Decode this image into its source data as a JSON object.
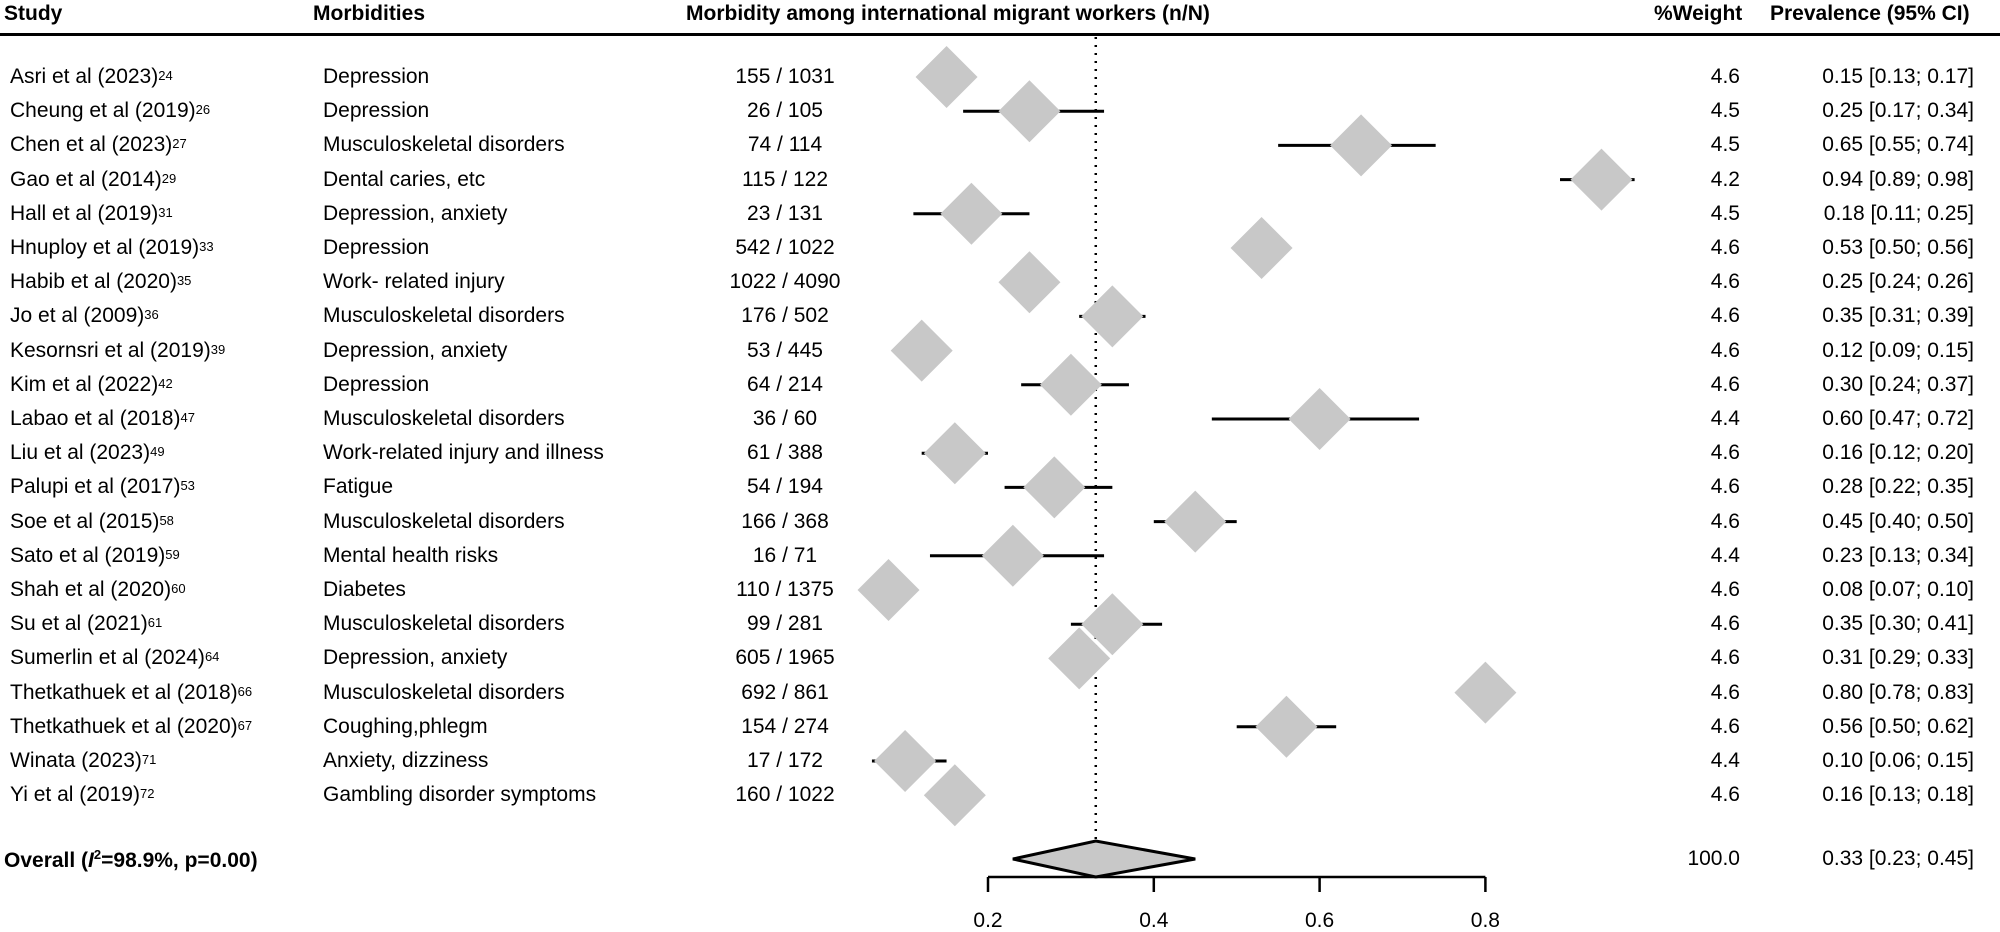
{
  "chart_data": {
    "type": "forest",
    "title": "",
    "columns": {
      "study": "Study",
      "morbidities": "Morbidities",
      "nN": "Morbidity among international migrant workers (n/N)",
      "weight": "%Weight",
      "prevalence": "Prevalence (95% CI)"
    },
    "xlim": [
      0.2,
      0.8
    ],
    "xticks": [
      0.2,
      0.4,
      0.6,
      0.8
    ],
    "xtick_labels": [
      "0.2",
      "0.4",
      "0.6",
      "0.8"
    ],
    "reference_line": 0.33,
    "studies": [
      {
        "study": "Asri et al (2023)",
        "ref": "24",
        "morbidity": "Depression",
        "nN": "155 / 1031",
        "weight": "4.6",
        "est": 0.15,
        "lo": 0.13,
        "hi": 0.17,
        "prevalence": "0.15 [0.13; 0.17]"
      },
      {
        "study": "Cheung et al (2019)",
        "ref": "26",
        "morbidity": "Depression",
        "nN": "26 / 105",
        "weight": "4.5",
        "est": 0.25,
        "lo": 0.17,
        "hi": 0.34,
        "prevalence": "0.25 [0.17; 0.34]"
      },
      {
        "study": "Chen et al (2023)",
        "ref": "27",
        "morbidity": "Musculoskeletal disorders",
        "nN": "74 / 114",
        "weight": "4.5",
        "est": 0.65,
        "lo": 0.55,
        "hi": 0.74,
        "prevalence": "0.65 [0.55; 0.74]"
      },
      {
        "study": "Gao et al (2014)",
        "ref": "29",
        "morbidity": "Dental caries, etc",
        "nN": "115 / 122",
        "weight": "4.2",
        "est": 0.94,
        "lo": 0.89,
        "hi": 0.98,
        "prevalence": "0.94 [0.89; 0.98]"
      },
      {
        "study": "Hall et al (2019)",
        "ref": "31",
        "morbidity": "Depression, anxiety",
        "nN": "23 / 131",
        "weight": "4.5",
        "est": 0.18,
        "lo": 0.11,
        "hi": 0.25,
        "prevalence": "0.18 [0.11; 0.25]"
      },
      {
        "study": "Hnuploy et al (2019)",
        "ref": "33",
        "morbidity": "Depression",
        "nN": "542 / 1022",
        "weight": "4.6",
        "est": 0.53,
        "lo": 0.5,
        "hi": 0.56,
        "prevalence": "0.53 [0.50; 0.56]"
      },
      {
        "study": "Habib et al (2020)",
        "ref": "35",
        "morbidity": "Work- related injury",
        "nN": "1022 / 4090",
        "weight": "4.6",
        "est": 0.25,
        "lo": 0.24,
        "hi": 0.26,
        "prevalence": "0.25 [0.24; 0.26]"
      },
      {
        "study": "Jo et al (2009)",
        "ref": "36",
        "morbidity": "Musculoskeletal disorders",
        "nN": "176 / 502",
        "weight": "4.6",
        "est": 0.35,
        "lo": 0.31,
        "hi": 0.39,
        "prevalence": "0.35 [0.31; 0.39]"
      },
      {
        "study": "Kesornsri et al (2019)",
        "ref": "39",
        "morbidity": "Depression, anxiety",
        "nN": "53 / 445",
        "weight": "4.6",
        "est": 0.12,
        "lo": 0.09,
        "hi": 0.15,
        "prevalence": "0.12 [0.09; 0.15]"
      },
      {
        "study": "Kim et al (2022)",
        "ref": "42",
        "morbidity": "Depression",
        "nN": "64 / 214",
        "weight": "4.6",
        "est": 0.3,
        "lo": 0.24,
        "hi": 0.37,
        "prevalence": "0.30 [0.24; 0.37]"
      },
      {
        "study": "Labao et al (2018)",
        "ref": "47",
        "morbidity": "Musculoskeletal disorders",
        "nN": "36 / 60",
        "weight": "4.4",
        "est": 0.6,
        "lo": 0.47,
        "hi": 0.72,
        "prevalence": "0.60 [0.47; 0.72]"
      },
      {
        "study": "Liu et al (2023)",
        "ref": "49",
        "morbidity": "Work-related injury and illness",
        "nN": "61 / 388",
        "weight": "4.6",
        "est": 0.16,
        "lo": 0.12,
        "hi": 0.2,
        "prevalence": "0.16 [0.12; 0.20]"
      },
      {
        "study": "Palupi et al (2017)",
        "ref": "53",
        "morbidity": "Fatigue",
        "nN": "54 / 194",
        "weight": "4.6",
        "est": 0.28,
        "lo": 0.22,
        "hi": 0.35,
        "prevalence": "0.28 [0.22; 0.35]"
      },
      {
        "study": "Soe et al (2015)",
        "ref": "58",
        "morbidity": "Musculoskeletal disorders",
        "nN": "166 / 368",
        "weight": "4.6",
        "est": 0.45,
        "lo": 0.4,
        "hi": 0.5,
        "prevalence": "0.45 [0.40; 0.50]"
      },
      {
        "study": "Sato et al (2019)",
        "ref": "59",
        "morbidity": "Mental health risks",
        "nN": "16 / 71",
        "weight": "4.4",
        "est": 0.23,
        "lo": 0.13,
        "hi": 0.34,
        "prevalence": "0.23 [0.13; 0.34]"
      },
      {
        "study": "Shah et al (2020)",
        "ref": "60",
        "morbidity": "Diabetes",
        "nN": "110 / 1375",
        "weight": "4.6",
        "est": 0.08,
        "lo": 0.07,
        "hi": 0.1,
        "prevalence": "0.08 [0.07; 0.10]"
      },
      {
        "study": "Su et al (2021)",
        "ref": "61",
        "morbidity": "Musculoskeletal disorders",
        "nN": "99 / 281",
        "weight": "4.6",
        "est": 0.35,
        "lo": 0.3,
        "hi": 0.41,
        "prevalence": "0.35 [0.30; 0.41]"
      },
      {
        "study": "Sumerlin et al (2024)",
        "ref": "64",
        "morbidity": "Depression, anxiety",
        "nN": "605 / 1965",
        "weight": "4.6",
        "est": 0.31,
        "lo": 0.29,
        "hi": 0.33,
        "prevalence": "0.31 [0.29; 0.33]"
      },
      {
        "study": "Thetkathuek et al (2018)",
        "ref": "66",
        "morbidity": "Musculoskeletal disorders",
        "nN": "692 / 861",
        "weight": "4.6",
        "est": 0.8,
        "lo": 0.78,
        "hi": 0.83,
        "prevalence": "0.80 [0.78; 0.83]"
      },
      {
        "study": "Thetkathuek et al (2020)",
        "ref": "67",
        "morbidity": "Coughing,phlegm",
        "nN": "154 / 274",
        "weight": "4.6",
        "est": 0.56,
        "lo": 0.5,
        "hi": 0.62,
        "prevalence": "0.56 [0.50; 0.62]"
      },
      {
        "study": "Winata (2023)",
        "ref": "71",
        "morbidity": "Anxiety, dizziness",
        "nN": "17 / 172",
        "weight": "4.4",
        "est": 0.1,
        "lo": 0.06,
        "hi": 0.15,
        "prevalence": "0.10 [0.06; 0.15]"
      },
      {
        "study": "Yi et al (2019)",
        "ref": "72",
        "morbidity": "Gambling disorder symptoms",
        "nN": "160 / 1022",
        "weight": "4.6",
        "est": 0.16,
        "lo": 0.13,
        "hi": 0.18,
        "prevalence": "0.16 [0.13; 0.18]"
      }
    ],
    "overall": {
      "label_prefix": "Overall (",
      "label_i": "I",
      "label_sup": "2",
      "label_suffix": "=98.9%, p=0.00)",
      "weight": "100.0",
      "est": 0.33,
      "lo": 0.23,
      "hi": 0.45,
      "prevalence": "0.33 [0.23; 0.45]"
    },
    "colors": {
      "marker_fill": "#c8c8c8",
      "line": "#000000"
    }
  }
}
